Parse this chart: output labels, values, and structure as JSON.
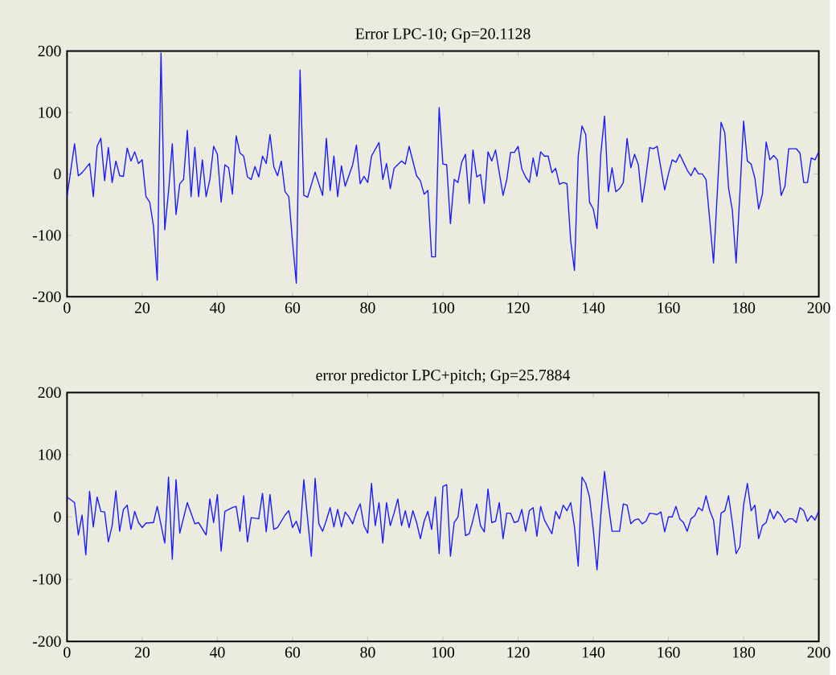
{
  "chart_data": [
    {
      "type": "line",
      "title": "Error LPC-10; Gp=20.1128",
      "xlim": [
        0,
        200
      ],
      "ylim": [
        -200,
        200
      ],
      "xticks": [
        0,
        20,
        40,
        60,
        80,
        100,
        120,
        140,
        160,
        180,
        200
      ],
      "yticks": [
        -200,
        -100,
        0,
        100,
        200
      ],
      "x": [
        0,
        2,
        3,
        4,
        6,
        7,
        8,
        9,
        10,
        11,
        12,
        13,
        14,
        15,
        16,
        17,
        18,
        19,
        20,
        21,
        22,
        23,
        24,
        25,
        26,
        27,
        28,
        29,
        30,
        31,
        32,
        33,
        34,
        35,
        36,
        37,
        38,
        39,
        40,
        41,
        42,
        43,
        44,
        45,
        46,
        47,
        48,
        49,
        50,
        51,
        52,
        53,
        54,
        55,
        56,
        57,
        58,
        59,
        60,
        61,
        62,
        63,
        64,
        66,
        68,
        69,
        70,
        71,
        72,
        73,
        74,
        76,
        77,
        78,
        79,
        80,
        81,
        83,
        84,
        85,
        86,
        87,
        89,
        90,
        91,
        93,
        94,
        95,
        96,
        97,
        98,
        99,
        100,
        101,
        102,
        103,
        104,
        105,
        106,
        107,
        108,
        109,
        110,
        111,
        112,
        113,
        114,
        115,
        116,
        117,
        118,
        119,
        120,
        121,
        122,
        123,
        124,
        125,
        126,
        127,
        128,
        129,
        130,
        131,
        132,
        133,
        134,
        135,
        136,
        137,
        138,
        139,
        140,
        141,
        142,
        143,
        144,
        145,
        146,
        147,
        148,
        149,
        150,
        151,
        152,
        153,
        154,
        155,
        156,
        157,
        159,
        160,
        161,
        162,
        163,
        164,
        165,
        166,
        167,
        168,
        169,
        170,
        171,
        172,
        174,
        175,
        176,
        177,
        178,
        179,
        180,
        181,
        182,
        183,
        184,
        185,
        186,
        187,
        188,
        189,
        190,
        191,
        192,
        194,
        195,
        196,
        197,
        198,
        199,
        200
      ],
      "series": [
        {
          "color": "#1a1aff",
          "values": [
            -37,
            49,
            -3,
            2,
            17,
            -37,
            45,
            58,
            -11,
            43,
            -14,
            21,
            -3,
            -4,
            42,
            21,
            36,
            17,
            23,
            -37,
            -46,
            -85,
            -173,
            197,
            -91,
            -29,
            49,
            -66,
            -16,
            -9,
            71,
            -37,
            43,
            -37,
            23,
            -37,
            -9,
            45,
            32,
            -46,
            15,
            10,
            -33,
            62,
            34,
            29,
            -5,
            -9,
            12,
            -5,
            29,
            17,
            64,
            12,
            -3,
            21,
            -29,
            -37,
            -111,
            -178,
            169,
            -35,
            -38,
            3,
            -35,
            58,
            -27,
            29,
            -37,
            13,
            -20,
            15,
            47,
            -16,
            -4,
            -14,
            29,
            51,
            -9,
            17,
            -24,
            9,
            21,
            16,
            45,
            -3,
            -11,
            -33,
            -27,
            -135,
            -135,
            108,
            16,
            15,
            -81,
            -9,
            -14,
            19,
            32,
            -48,
            39,
            -5,
            -1,
            -48,
            36,
            21,
            39,
            2,
            -35,
            -9,
            35,
            35,
            45,
            8,
            -5,
            -14,
            26,
            -4,
            36,
            29,
            29,
            2,
            9,
            -17,
            -14,
            -16,
            -109,
            -157,
            29,
            78,
            64,
            -46,
            -57,
            -89,
            32,
            94,
            -29,
            10,
            -29,
            -24,
            -14,
            58,
            10,
            32,
            15,
            -46,
            -5,
            43,
            41,
            45,
            -26,
            0,
            23,
            19,
            32,
            19,
            6,
            -3,
            10,
            0,
            0,
            -9,
            -76,
            -145,
            84,
            67,
            -23,
            -59,
            -145,
            -33,
            86,
            21,
            16,
            -7,
            -57,
            -33,
            52,
            23,
            30,
            23,
            -35,
            -20,
            41,
            41,
            34,
            -14,
            -14,
            26,
            23,
            36
          ]
        }
      ]
    },
    {
      "type": "line",
      "title": "error predictor LPC+pitch; Gp=25.7884",
      "xlim": [
        0,
        200
      ],
      "ylim": [
        -200,
        200
      ],
      "xticks": [
        0,
        20,
        40,
        60,
        80,
        100,
        120,
        140,
        160,
        180,
        200
      ],
      "yticks": [
        -200,
        -100,
        0,
        100,
        200
      ],
      "x": [
        0,
        2,
        3,
        4,
        5,
        6,
        7,
        8,
        9,
        10,
        11,
        12,
        13,
        14,
        15,
        16,
        17,
        18,
        19,
        20,
        21,
        23,
        24,
        26,
        27,
        28,
        29,
        30,
        32,
        34,
        35,
        37,
        38,
        39,
        40,
        41,
        42,
        44,
        45,
        46,
        47,
        48,
        49,
        51,
        52,
        53,
        54,
        55,
        56,
        58,
        59,
        60,
        61,
        62,
        63,
        64,
        65,
        66,
        67,
        68,
        69,
        70,
        71,
        72,
        73,
        74,
        75,
        76,
        77,
        78,
        79,
        80,
        81,
        82,
        83,
        84,
        85,
        86,
        87,
        88,
        89,
        90,
        91,
        92,
        93,
        94,
        95,
        96,
        97,
        98,
        99,
        100,
        101,
        102,
        103,
        104,
        105,
        106,
        107,
        108,
        109,
        110,
        111,
        112,
        113,
        114,
        115,
        116,
        117,
        118,
        119,
        120,
        121,
        122,
        123,
        124,
        125,
        126,
        127,
        128,
        129,
        130,
        131,
        132,
        133,
        134,
        135,
        136,
        137,
        138,
        139,
        140,
        141,
        142,
        143,
        144,
        145,
        146,
        147,
        148,
        149,
        150,
        151,
        152,
        153,
        154,
        155,
        156,
        157,
        158,
        159,
        160,
        161,
        162,
        163,
        164,
        165,
        166,
        167,
        168,
        169,
        170,
        171,
        172,
        173,
        174,
        175,
        176,
        177,
        178,
        179,
        180,
        181,
        182,
        183,
        184,
        185,
        186,
        187,
        188,
        189,
        190,
        191,
        192,
        193,
        194,
        195,
        196,
        197,
        198,
        199,
        200
      ],
      "series": [
        {
          "color": "#1a1aff",
          "values": [
            32,
            23,
            -29,
            3,
            -61,
            41,
            -16,
            32,
            9,
            8,
            -40,
            -14,
            42,
            -23,
            12,
            19,
            -20,
            9,
            -9,
            -17,
            -10,
            -9,
            17,
            -42,
            64,
            -68,
            60,
            -26,
            23,
            -11,
            -9,
            -29,
            29,
            -9,
            36,
            -55,
            9,
            15,
            17,
            -23,
            34,
            -40,
            -1,
            -3,
            38,
            -24,
            36,
            -20,
            -17,
            3,
            10,
            -17,
            -7,
            -26,
            60,
            -3,
            -63,
            62,
            -11,
            -23,
            -5,
            15,
            -16,
            12,
            -16,
            8,
            0,
            -11,
            8,
            21,
            -14,
            -26,
            54,
            -14,
            23,
            -42,
            23,
            -14,
            6,
            29,
            -14,
            10,
            -17,
            10,
            -9,
            -35,
            -7,
            9,
            -20,
            32,
            -59,
            49,
            52,
            -63,
            -9,
            0,
            45,
            -30,
            -27,
            -5,
            21,
            -14,
            -24,
            45,
            -9,
            -7,
            23,
            -35,
            6,
            6,
            -9,
            -7,
            12,
            -23,
            10,
            15,
            -31,
            17,
            -5,
            -16,
            -27,
            9,
            -3,
            19,
            10,
            23,
            -16,
            -79,
            64,
            54,
            32,
            -20,
            -85,
            2,
            73,
            21,
            -23,
            -23,
            -23,
            21,
            19,
            -11,
            -5,
            -3,
            -11,
            -7,
            6,
            5,
            4,
            8,
            -24,
            0,
            0,
            17,
            -3,
            -9,
            -23,
            -3,
            2,
            15,
            10,
            34,
            10,
            -5,
            -61,
            6,
            10,
            34,
            -9,
            -59,
            -48,
            19,
            54,
            10,
            19,
            -35,
            -14,
            -9,
            12,
            -3,
            9,
            2,
            -9,
            -3,
            -3,
            -9,
            15,
            10,
            -7,
            2,
            -5,
            10
          ]
        }
      ]
    }
  ]
}
